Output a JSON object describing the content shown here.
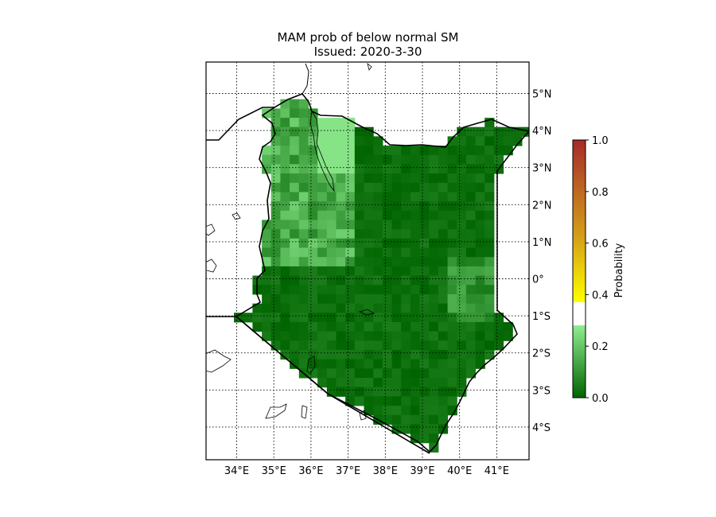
{
  "title": {
    "line1": "MAM prob of below normal SM",
    "line2": "Issued: 2020-3-30"
  },
  "map": {
    "region": "Kenya",
    "lon_range": [
      33.2,
      41.9
    ],
    "lat_range": [
      -4.9,
      5.8
    ],
    "lon_ticks": [
      {
        "value": 34,
        "label": "34°E"
      },
      {
        "value": 35,
        "label": "35°E"
      },
      {
        "value": 36,
        "label": "36°E"
      },
      {
        "value": 37,
        "label": "37°E"
      },
      {
        "value": 38,
        "label": "38°E"
      },
      {
        "value": 39,
        "label": "39°E"
      },
      {
        "value": 40,
        "label": "40°E"
      },
      {
        "value": 41,
        "label": "41°E"
      }
    ],
    "lat_ticks": [
      {
        "value": 5,
        "label": "5°N"
      },
      {
        "value": 4,
        "label": "4°N"
      },
      {
        "value": 3,
        "label": "3°N"
      },
      {
        "value": 2,
        "label": "2°N"
      },
      {
        "value": 1,
        "label": "1°N"
      },
      {
        "value": 0,
        "label": "0°"
      },
      {
        "value": -1,
        "label": "1°S"
      },
      {
        "value": -2,
        "label": "2°S"
      },
      {
        "value": -3,
        "label": "3°S"
      },
      {
        "value": -4,
        "label": "4°S"
      }
    ],
    "gridlines": "dotted",
    "cell_size_deg": 0.25
  },
  "colorbar": {
    "label": "Probability",
    "range": [
      0.0,
      1.0
    ],
    "ticks": [
      {
        "value": 0.0,
        "label": "0.0"
      },
      {
        "value": 0.2,
        "label": "0.2"
      },
      {
        "value": 0.4,
        "label": "0.4"
      },
      {
        "value": 0.6,
        "label": "0.6"
      },
      {
        "value": 0.8,
        "label": "0.8"
      },
      {
        "value": 1.0,
        "label": "1.0"
      }
    ],
    "segments": [
      {
        "from": 0.0,
        "to": 0.28,
        "color_low": "#006400",
        "color_high": "#90ee90"
      },
      {
        "from": 0.28,
        "to": 0.37,
        "color_low": "#ffffff",
        "color_high": "#ffffff"
      },
      {
        "from": 0.37,
        "to": 1.0,
        "color_low": "#ffff00",
        "color_high": "#a52a2a"
      }
    ]
  },
  "chart_data": {
    "type": "heatmap",
    "title": "MAM prob of below normal SM\nIssued: 2020-3-30",
    "xlabel": "",
    "ylabel": "",
    "x_range": [
      33.2,
      41.9
    ],
    "y_range": [
      -4.9,
      5.8
    ],
    "colorbar_label": "Probability",
    "value_range": [
      0.0,
      1.0
    ],
    "summary": {
      "dominant_value": 0.05,
      "elevated_west_region_value": 0.22,
      "max_value": 0.3
    }
  }
}
